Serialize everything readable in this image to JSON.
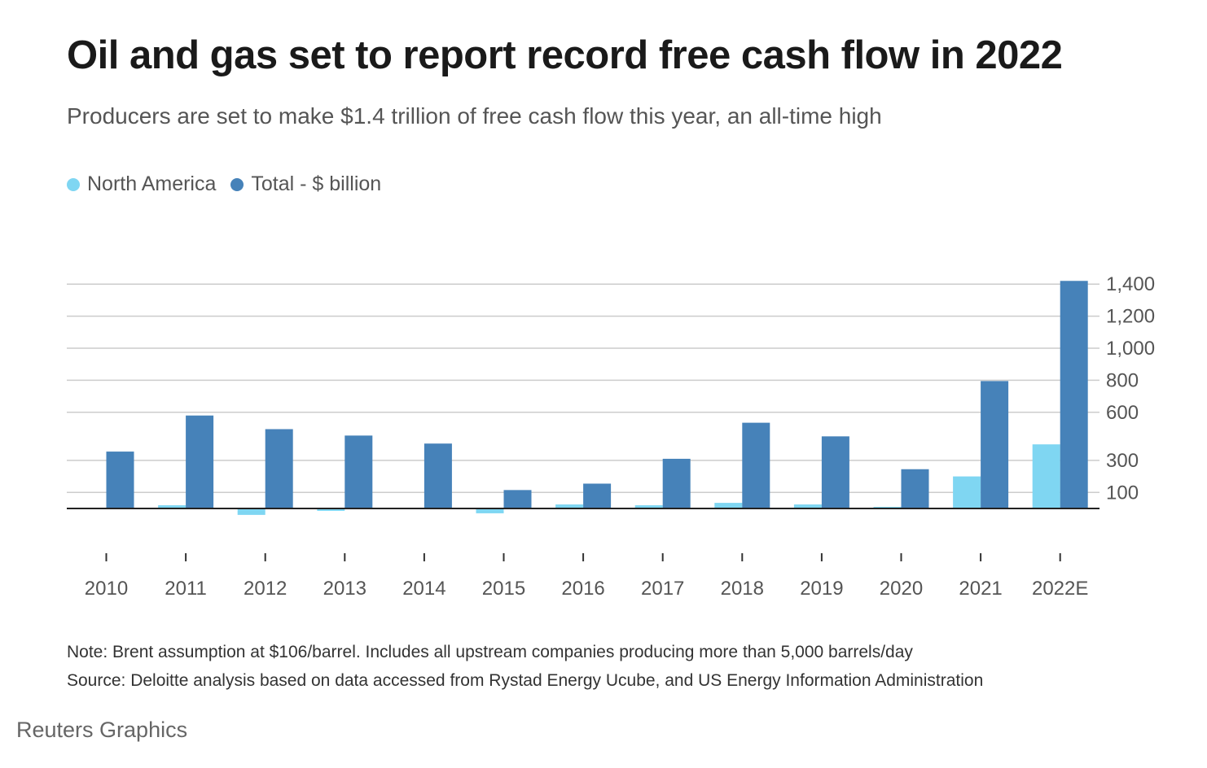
{
  "header": {
    "title": "Oil and gas set to report record free cash flow in 2022",
    "subtitle": "Producers are set to make $1.4 trillion of free cash flow this year, an all-time high"
  },
  "legend": {
    "items": [
      {
        "label": "North America",
        "color": "#7fd6f2"
      },
      {
        "label": "Total - $ billion",
        "color": "#4682b9"
      }
    ]
  },
  "chart_data": {
    "type": "bar",
    "title": "Oil and gas set to report record free cash flow in 2022",
    "subtitle": "Producers are set to make $1.4 trillion of free cash flow this year, an all-time high",
    "xlabel": "",
    "ylabel": "",
    "categories": [
      "2010",
      "2011",
      "2012",
      "2013",
      "2014",
      "2015",
      "2016",
      "2017",
      "2018",
      "2019",
      "2020",
      "2021",
      "2022E"
    ],
    "series": [
      {
        "name": "North America",
        "color": "#7fd6f2",
        "values": [
          5,
          20,
          -40,
          -15,
          -5,
          -30,
          25,
          20,
          35,
          25,
          10,
          200,
          400
        ]
      },
      {
        "name": "Total - $ billion",
        "color": "#4682b9",
        "values": [
          355,
          580,
          495,
          455,
          405,
          115,
          155,
          310,
          535,
          450,
          245,
          795,
          1420
        ]
      }
    ],
    "yticks": [
      100,
      300,
      600,
      800,
      1000,
      1200,
      1400
    ],
    "ytick_labels": [
      "100",
      "300",
      "600",
      "800",
      "1,000",
      "1,200",
      "1,400"
    ],
    "ylim": [
      -100,
      1420
    ],
    "grid": true,
    "y_axis_position": "right",
    "legend_position": "top-left"
  },
  "footer": {
    "note": "Note: Brent assumption at $106/barrel. Includes all upstream companies producing more than 5,000 barrels/day",
    "source": "Source: Deloitte analysis based on data accessed from Rystad Energy Ucube, and US Energy Information Administration",
    "credit": "Reuters Graphics"
  }
}
